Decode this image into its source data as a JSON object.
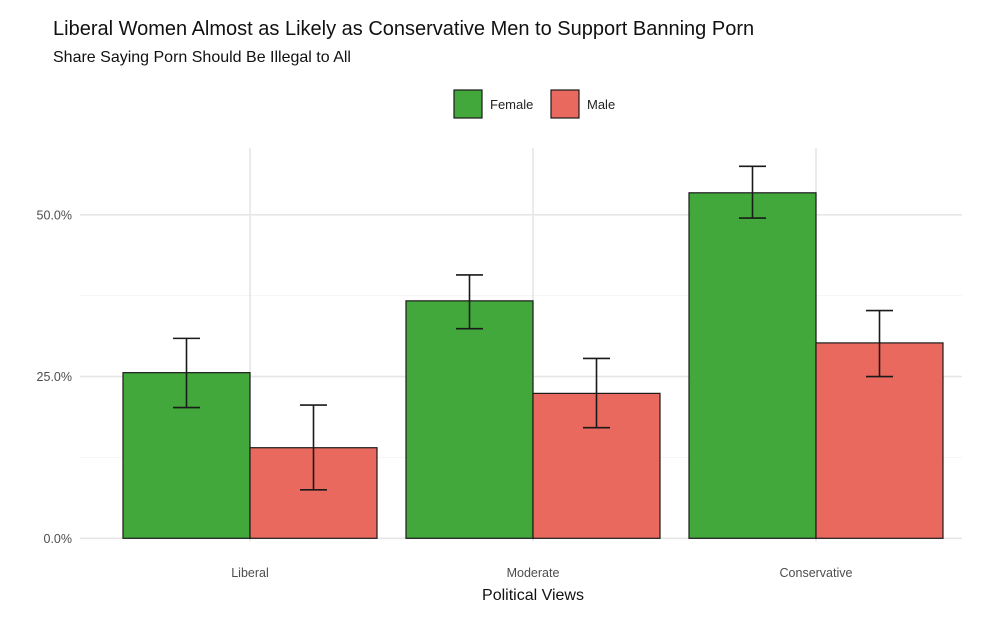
{
  "chart_data": {
    "type": "bar",
    "title": "Liberal Women Almost as Likely as Conservative Men to Support Banning Porn",
    "subtitle": "Share Saying Porn Should Be Illegal to All",
    "xlabel": "Political Views",
    "ylabel": "",
    "categories": [
      "Liberal",
      "Moderate",
      "Conservative"
    ],
    "ylim": [
      0,
      60
    ],
    "yticks": [
      0,
      25,
      50
    ],
    "ytick_labels": [
      "0.0%",
      "25.0%",
      "50.0%"
    ],
    "grid": true,
    "legend_position": "top",
    "series": [
      {
        "name": "Female",
        "color": "#42A83B",
        "values": [
          25.6,
          36.7,
          53.4
        ],
        "lower": [
          20.2,
          32.4,
          49.5
        ],
        "upper": [
          30.9,
          40.7,
          57.5
        ]
      },
      {
        "name": "Male",
        "color": "#E9695E",
        "values": [
          14.0,
          22.4,
          30.2
        ],
        "lower": [
          7.5,
          17.1,
          25.0
        ],
        "upper": [
          20.6,
          27.8,
          35.2
        ]
      }
    ]
  }
}
